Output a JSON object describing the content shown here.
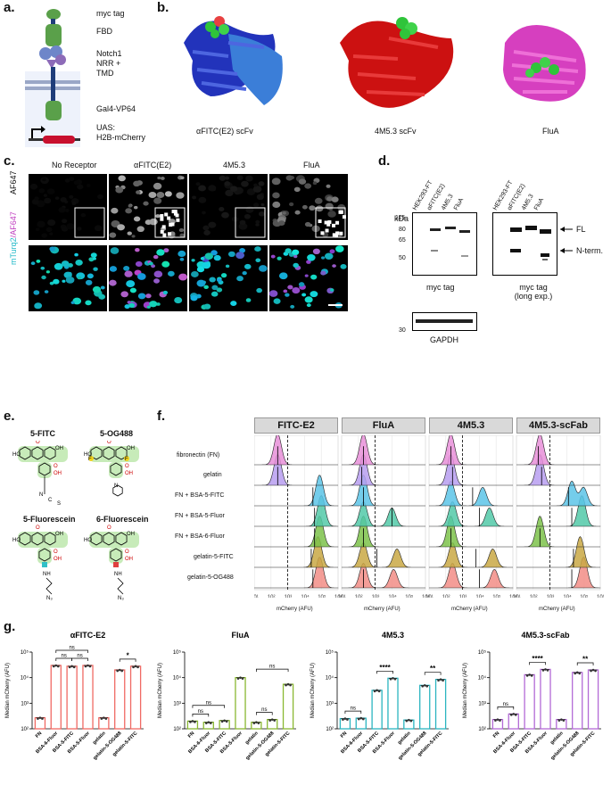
{
  "panels": {
    "a": "a.",
    "b": "b.",
    "c": "c.",
    "d": "d.",
    "e": "e.",
    "f": "f.",
    "g": "g."
  },
  "panel_a": {
    "labels": [
      "myc tag",
      "FBD",
      "Notch1\nNRR +\nTMD",
      "Gal4-VP64",
      "UAS:\nH2B-mCherry"
    ],
    "colors": {
      "green": "#5aa04a",
      "blue": "#6e86c9",
      "purple": "#8d6bb8",
      "navy": "#1f3d7a",
      "red": "#c8102e",
      "membrane": "#9aa7c7"
    }
  },
  "panel_b": {
    "labels": [
      "αFITC(E2) scFv",
      "4M5.3 scFv",
      "FluA"
    ],
    "colors": [
      "#2233bb",
      "#cc1111",
      "#d63fbf"
    ]
  },
  "panel_c": {
    "columns": [
      "No Receptor",
      "αFITC(E2)",
      "4M5.3",
      "FluA"
    ],
    "row1": "AF647",
    "row2_a": "mTurq2",
    "row2_b": "/AF647"
  },
  "panel_d": {
    "kda": "kDa",
    "lanes": [
      "HEK293-FT",
      "αFITC(E2)",
      "4M5.3",
      "FluA"
    ],
    "markers": [
      "115",
      "80",
      "65",
      "50"
    ],
    "marker30": "30",
    "fl": "FL",
    "nterm": "N-term.",
    "cap1": "myc tag",
    "cap2a": "myc tag",
    "cap2b": "(long exp.)",
    "cap3": "GAPDH"
  },
  "panel_e": {
    "compounds": [
      "5-FITC",
      "5-OG488",
      "5-Fluorescein",
      "6-Fluorescein"
    ],
    "atoms": {
      "O": "O",
      "OH": "OH",
      "HO": "HO",
      "N": "N",
      "C": "C",
      "S": "S",
      "F": "F",
      "N3": "N₃",
      "NH": "NH"
    }
  },
  "panel_f": {
    "facets": [
      "FITC-E2",
      "FluA",
      "4M5.3",
      "4M5.3-scFab"
    ],
    "rows": [
      "fibronectin (FN)",
      "gelatin",
      "FN + BSA-5-FITC",
      "FN + BSA-5-Fluor",
      "FN + BSA-6-Fluor",
      "gelatin-5-FITC",
      "gelatin-5-OG488"
    ],
    "row_colors": [
      "#e88fd8",
      "#b79ef0",
      "#5cc4e8",
      "#52c9a8",
      "#7dc24a",
      "#c9a844",
      "#f28d86"
    ],
    "xlabel": "mCherry (AFU)",
    "xticks": [
      "10¹",
      "10²",
      "10³",
      "10⁴",
      "10⁵",
      "10⁶"
    ],
    "modes_log10": [
      [
        [
          2.4
        ],
        [
          2.4
        ],
        [
          4.9
        ],
        [
          5.0
        ],
        [
          4.9
        ],
        [
          4.8
        ],
        [
          4.9
        ]
      ],
      [
        [
          2.3
        ],
        [
          2.3
        ],
        [
          2.3
        ],
        [
          2.3,
          4.0
        ],
        [
          2.3
        ],
        [
          2.3,
          4.3
        ],
        [
          2.3,
          4.1
        ]
      ],
      [
        [
          2.3
        ],
        [
          2.3
        ],
        [
          2.3,
          4.2
        ],
        [
          2.4,
          4.6
        ],
        [
          2.3
        ],
        [
          2.4,
          4.8
        ],
        [
          2.4,
          4.9
        ]
      ],
      [
        [
          2.4
        ],
        [
          2.4
        ],
        [
          4.3,
          5.0
        ],
        [
          4.9
        ],
        [
          2.4
        ],
        [
          4.8
        ],
        [
          5.0
        ]
      ]
    ],
    "medians_log10": [
      [
        2.4,
        2.4,
        4.5,
        4.6,
        4.6,
        4.4,
        4.5
      ],
      [
        2.3,
        2.2,
        2.3,
        4.0,
        2.3,
        3.1,
        2.3
      ],
      [
        2.3,
        2.4,
        3.6,
        4.0,
        2.3,
        3.8,
        4.0
      ],
      [
        2.3,
        2.5,
        4.1,
        4.3,
        2.4,
        4.4,
        4.3
      ]
    ],
    "cutoff_log10": 3.0
  },
  "chart_data": [
    {
      "type": "bar",
      "title": "αFITC-E2",
      "ylabel": "Median mCherry (AFU)",
      "yscale": "log",
      "ylim": [
        100,
        100000
      ],
      "yticks": [
        "10²",
        "10³",
        "10⁴",
        "10⁵"
      ],
      "color": "#f06a64",
      "categories": [
        "FN",
        "BSA-6-Fluor",
        "BSA-5-FITC",
        "BSA-5-Fluor",
        "gelatin",
        "gelatin-5-OG488",
        "gelatin-5-FITC"
      ],
      "values": [
        270,
        30000,
        28000,
        30000,
        270,
        20000,
        28000
      ],
      "significance": [
        {
          "from": 1,
          "to": 2,
          "label": "ns",
          "level": 0
        },
        {
          "from": 2,
          "to": 3,
          "label": "ns",
          "level": 0
        },
        {
          "from": 1,
          "to": 3,
          "label": "ns",
          "level": 1
        },
        {
          "from": 5,
          "to": 6,
          "label": "*",
          "level": 0
        }
      ]
    },
    {
      "type": "bar",
      "title": "FluA",
      "ylabel": "Median mCherry (AFU)",
      "yscale": "log",
      "ylim": [
        100,
        100000
      ],
      "yticks": [
        "10²",
        "10³",
        "10⁴",
        "10⁵"
      ],
      "color": "#8ab832",
      "categories": [
        "FN",
        "BSA-6-Fluor",
        "BSA-5-FITC",
        "BSA-5-Fluor",
        "gelatin",
        "gelatin-5-OG488",
        "gelatin-5-FITC"
      ],
      "values": [
        200,
        180,
        210,
        10000,
        180,
        230,
        5500
      ],
      "significance": [
        {
          "from": 0,
          "to": 1,
          "label": "ns",
          "level": 0
        },
        {
          "from": 0,
          "to": 2,
          "label": "ns",
          "level": 1
        },
        {
          "from": 4,
          "to": 5,
          "label": "ns",
          "level": 0
        },
        {
          "from": 4,
          "to": 6,
          "label": "ns",
          "level": 1
        }
      ]
    },
    {
      "type": "bar",
      "title": "4M5.3",
      "ylabel": "Median mCherry (AFU)",
      "yscale": "log",
      "ylim": [
        100,
        100000
      ],
      "yticks": [
        "10²",
        "10³",
        "10⁴",
        "10⁵"
      ],
      "color": "#2bb5c0",
      "categories": [
        "FN",
        "BSA-6-Fluor",
        "BSA-5-FITC",
        "BSA-5-Fluor",
        "gelatin",
        "gelatin-5-OG488",
        "gelatin-5-FITC"
      ],
      "values": [
        250,
        260,
        3200,
        9500,
        220,
        5000,
        8500
      ],
      "significance": [
        {
          "from": 0,
          "to": 1,
          "label": "ns",
          "level": 0
        },
        {
          "from": 2,
          "to": 3,
          "label": "****",
          "level": 0
        },
        {
          "from": 5,
          "to": 6,
          "label": "**",
          "level": 0
        }
      ]
    },
    {
      "type": "bar",
      "title": "4M5.3-scFab",
      "ylabel": "Median mCherry (AFU)",
      "yscale": "log",
      "ylim": [
        100,
        100000
      ],
      "yticks": [
        "10²",
        "10³",
        "10⁴",
        "10⁵"
      ],
      "color": "#b36ad6",
      "categories": [
        "FN",
        "BSA-6-Fluor",
        "BSA-5-FITC",
        "BSA-5-Fluor",
        "gelatin",
        "gelatin-5-OG488",
        "gelatin-5-FITC"
      ],
      "values": [
        230,
        380,
        13000,
        21000,
        230,
        16000,
        20000
      ],
      "significance": [
        {
          "from": 0,
          "to": 1,
          "label": "ns",
          "level": 0
        },
        {
          "from": 2,
          "to": 3,
          "label": "****",
          "level": 0
        },
        {
          "from": 5,
          "to": 6,
          "label": "**",
          "level": 0
        }
      ]
    }
  ]
}
